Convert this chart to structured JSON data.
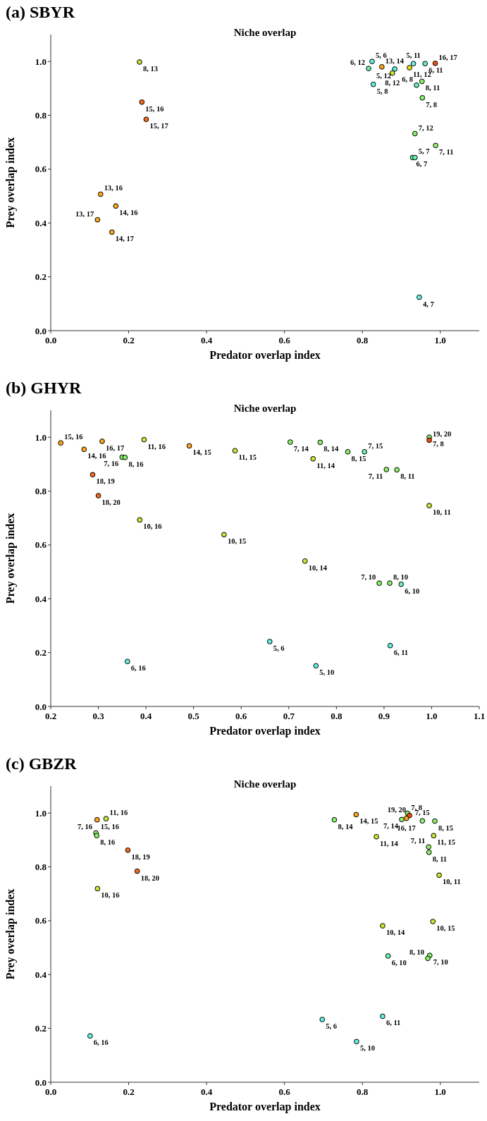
{
  "chart_data": [
    {
      "type": "scatter",
      "title": "(a) SBYR",
      "subtitle": "Niche overlap",
      "xlabel": "Predator overlap index",
      "ylabel": "Prey overlap index",
      "marker": "circle",
      "xlim": [
        0,
        1.1
      ],
      "ylim": [
        0,
        1.1
      ],
      "xticks": [
        {
          "value": 0,
          "label": "0.0"
        },
        {
          "value": 0.2,
          "label": "0.2"
        },
        {
          "value": 0.4,
          "label": "0.4"
        },
        {
          "value": 0.6,
          "label": "0.6"
        },
        {
          "value": 0.8,
          "label": "0.8"
        },
        {
          "value": 1,
          "label": "1.0"
        }
      ],
      "yticks": [
        {
          "value": 0,
          "label": "0.0"
        },
        {
          "value": 0.2,
          "label": "0.2"
        },
        {
          "value": 0.4,
          "label": "0.4"
        },
        {
          "value": 0.6,
          "label": "0.6"
        },
        {
          "value": 0.8,
          "label": "0.8"
        },
        {
          "value": 1,
          "label": "1.0"
        }
      ],
      "x": [
        0.228,
        0.234,
        0.245,
        0.128,
        0.167,
        0.12,
        0.157,
        0.946,
        0.988,
        0.929,
        0.935,
        0.935,
        0.954,
        0.953,
        0.939,
        0.828,
        0.816,
        0.825,
        0.85,
        0.883,
        0.877,
        0.921,
        0.931,
        0.961,
        0.987
      ],
      "values": [
        0.998,
        0.849,
        0.785,
        0.507,
        0.463,
        0.412,
        0.366,
        0.124,
        0.688,
        0.643,
        0.643,
        0.732,
        0.865,
        0.926,
        0.912,
        0.915,
        0.974,
        1.0,
        0.98,
        0.972,
        0.957,
        0.977,
        0.992,
        0.992,
        0.993
      ],
      "colors": [
        "#c0e838",
        "#f26a1b",
        "#f26a1b",
        "#f9a61e",
        "#f9a61e",
        "#f9a61e",
        "#f9a61e",
        "#66eedd",
        "#8cef6c",
        "#6cefb0",
        "#6cefb0",
        "#8cef6c",
        "#8cef6c",
        "#8cef6c",
        "#6cefb0",
        "#66eedd",
        "#6cefb0",
        "#66eedd",
        "#f9a61e",
        "#66eedd",
        "#c0e838",
        "#ecdf1a",
        "#66eedd",
        "#6cefb0",
        "#f04e14"
      ],
      "annotations": [
        {
          "text": "8, 13",
          "x": 0.228,
          "y": 0.998
        },
        {
          "text": "15, 16",
          "x": 0.234,
          "y": 0.849
        },
        {
          "text": "15, 17",
          "x": 0.245,
          "y": 0.785
        },
        {
          "text": "13, 16",
          "x": 0.128,
          "y": 0.507
        },
        {
          "text": "14, 16",
          "x": 0.167,
          "y": 0.463
        },
        {
          "text": "13, 17",
          "x": 0.12,
          "y": 0.412
        },
        {
          "text": "14, 17",
          "x": 0.157,
          "y": 0.366
        },
        {
          "text": "4, 7",
          "x": 0.946,
          "y": 0.124
        },
        {
          "text": "7, 11",
          "x": 0.988,
          "y": 0.688
        },
        {
          "text": "6, 7",
          "x": 0.929,
          "y": 0.643
        },
        {
          "text": "5, 7",
          "x": 0.935,
          "y": 0.643
        },
        {
          "text": "7, 12",
          "x": 0.935,
          "y": 0.732
        },
        {
          "text": "7, 8",
          "x": 0.954,
          "y": 0.865
        },
        {
          "text": "8, 11",
          "x": 0.953,
          "y": 0.926
        },
        {
          "text": "6, 8",
          "x": 0.939,
          "y": 0.912
        },
        {
          "text": "5, 8",
          "x": 0.828,
          "y": 0.915
        },
        {
          "text": "6, 12",
          "x": 0.816,
          "y": 0.974
        },
        {
          "text": "5, 6",
          "x": 0.825,
          "y": 1.0
        },
        {
          "text": "13, 14",
          "x": 0.85,
          "y": 0.98
        },
        {
          "text": "5, 12",
          "x": 0.883,
          "y": 0.972
        },
        {
          "text": "8, 12",
          "x": 0.877,
          "y": 0.957
        },
        {
          "text": "11, 12",
          "x": 0.921,
          "y": 0.977
        },
        {
          "text": "5, 11",
          "x": 0.931,
          "y": 0.992
        },
        {
          "text": "6, 11",
          "x": 0.961,
          "y": 0.992
        },
        {
          "text": "16, 17",
          "x": 0.987,
          "y": 0.993
        }
      ]
    },
    {
      "type": "scatter",
      "title": "(b) GHYR",
      "subtitle": "Niche overlap",
      "xlabel": "Predator overlap index",
      "ylabel": "Prey overlap index",
      "marker": "circle",
      "xlim": [
        0.2,
        1.1
      ],
      "ylim": [
        0,
        1.1
      ],
      "xticks": [
        {
          "value": 0.2,
          "label": "0.2"
        },
        {
          "value": 0.3,
          "label": "0.3"
        },
        {
          "value": 0.4,
          "label": "0.4"
        },
        {
          "value": 0.5,
          "label": "0.5"
        },
        {
          "value": 0.6,
          "label": "0.6"
        },
        {
          "value": 0.7,
          "label": "0.7"
        },
        {
          "value": 0.8,
          "label": "0.8"
        },
        {
          "value": 0.9,
          "label": "0.9"
        },
        {
          "value": 1,
          "label": "1.0"
        },
        {
          "value": 1.1,
          "label": "1.1"
        }
      ],
      "yticks": [
        {
          "value": 0,
          "label": "0.0"
        },
        {
          "value": 0.2,
          "label": "0.2"
        },
        {
          "value": 0.4,
          "label": "0.4"
        },
        {
          "value": 0.6,
          "label": "0.6"
        },
        {
          "value": 0.8,
          "label": "0.8"
        },
        {
          "value": 1,
          "label": "1.0"
        }
      ],
      "x": [
        0.221,
        0.27,
        0.308,
        0.288,
        0.3,
        0.35,
        0.356,
        0.396,
        0.387,
        0.361,
        0.491,
        0.587,
        0.564,
        0.703,
        0.766,
        0.751,
        0.734,
        0.824,
        0.859,
        0.905,
        0.927,
        0.995,
        0.995,
        0.995,
        0.89,
        0.912,
        0.936,
        0.66,
        0.757,
        0.913
      ],
      "values": [
        0.979,
        0.955,
        0.985,
        0.861,
        0.783,
        0.926,
        0.925,
        0.991,
        0.693,
        0.167,
        0.968,
        0.95,
        0.638,
        0.982,
        0.981,
        0.92,
        0.54,
        0.946,
        0.946,
        0.88,
        0.879,
        1.0,
        0.989,
        0.746,
        0.458,
        0.458,
        0.454,
        0.241,
        0.151,
        0.226
      ],
      "colors": [
        "#f9a61e",
        "#f9a61e",
        "#f9a61e",
        "#f26a1b",
        "#f26a1b",
        "#8cef6c",
        "#8cef6c",
        "#c0e838",
        "#c0e838",
        "#66eedd",
        "#f9a61e",
        "#c0e838",
        "#c0e838",
        "#8cef6c",
        "#8cef6c",
        "#c0e838",
        "#c0e838",
        "#8cef6c",
        "#6cefb0",
        "#8cef6c",
        "#8cef6c",
        "#8cef6c",
        "#f04e14",
        "#c0e838",
        "#8cef6c",
        "#8cef6c",
        "#6cefb0",
        "#66eedd",
        "#66eedd",
        "#66eedd"
      ],
      "annotations": [
        {
          "text": "15, 16",
          "x": 0.221,
          "y": 0.979
        },
        {
          "text": "14, 16",
          "x": 0.27,
          "y": 0.955
        },
        {
          "text": "16, 17",
          "x": 0.308,
          "y": 0.985
        },
        {
          "text": "18, 19",
          "x": 0.288,
          "y": 0.861
        },
        {
          "text": "18, 20",
          "x": 0.3,
          "y": 0.783
        },
        {
          "text": "7, 16",
          "x": 0.35,
          "y": 0.926
        },
        {
          "text": "8, 16",
          "x": 0.356,
          "y": 0.925
        },
        {
          "text": "11, 16",
          "x": 0.396,
          "y": 0.991
        },
        {
          "text": "10, 16",
          "x": 0.387,
          "y": 0.693
        },
        {
          "text": "6, 16",
          "x": 0.361,
          "y": 0.167
        },
        {
          "text": "14, 15",
          "x": 0.491,
          "y": 0.968
        },
        {
          "text": "11, 15",
          "x": 0.587,
          "y": 0.95
        },
        {
          "text": "10, 15",
          "x": 0.564,
          "y": 0.638
        },
        {
          "text": "7, 14",
          "x": 0.703,
          "y": 0.982
        },
        {
          "text": "8, 14",
          "x": 0.766,
          "y": 0.981
        },
        {
          "text": "11, 14",
          "x": 0.751,
          "y": 0.92
        },
        {
          "text": "10, 14",
          "x": 0.734,
          "y": 0.54
        },
        {
          "text": "8, 15",
          "x": 0.824,
          "y": 0.946
        },
        {
          "text": "7, 15",
          "x": 0.859,
          "y": 0.946
        },
        {
          "text": "7, 11",
          "x": 0.905,
          "y": 0.88
        },
        {
          "text": "8, 11",
          "x": 0.927,
          "y": 0.879
        },
        {
          "text": "7, 8",
          "x": 0.995,
          "y": 1.0
        },
        {
          "text": "19, 20",
          "x": 0.995,
          "y": 0.989
        },
        {
          "text": "10, 11",
          "x": 0.995,
          "y": 0.746
        },
        {
          "text": "7, 10",
          "x": 0.89,
          "y": 0.458
        },
        {
          "text": "8, 10",
          "x": 0.912,
          "y": 0.458
        },
        {
          "text": "6, 10",
          "x": 0.936,
          "y": 0.454
        },
        {
          "text": "5, 6",
          "x": 0.66,
          "y": 0.241
        },
        {
          "text": "5, 10",
          "x": 0.757,
          "y": 0.151
        },
        {
          "text": "6, 11",
          "x": 0.913,
          "y": 0.226
        }
      ]
    },
    {
      "type": "scatter",
      "title": "(c) GBZR",
      "subtitle": "Niche overlap",
      "xlabel": "Predator overlap index",
      "ylabel": "Prey overlap index",
      "marker": "circle",
      "xlim": [
        0,
        1.1
      ],
      "ylim": [
        0,
        1.1
      ],
      "xticks": [
        {
          "value": 0,
          "label": "0.0"
        },
        {
          "value": 0.2,
          "label": "0.2"
        },
        {
          "value": 0.4,
          "label": "0.4"
        },
        {
          "value": 0.6,
          "label": "0.6"
        },
        {
          "value": 0.8,
          "label": "0.8"
        },
        {
          "value": 1,
          "label": "1.0"
        }
      ],
      "yticks": [
        {
          "value": 0,
          "label": "0.0"
        },
        {
          "value": 0.2,
          "label": "0.2"
        },
        {
          "value": 0.4,
          "label": "0.4"
        },
        {
          "value": 0.6,
          "label": "0.6"
        },
        {
          "value": 0.8,
          "label": "0.8"
        },
        {
          "value": 1,
          "label": "1.0"
        }
      ],
      "x": [
        0.119,
        0.142,
        0.116,
        0.118,
        0.198,
        0.222,
        0.12,
        0.101,
        0.784,
        0.728,
        0.836,
        0.916,
        0.921,
        0.913,
        0.901,
        0.954,
        0.986,
        0.983,
        0.97,
        0.971,
        0.997,
        0.981,
        0.852,
        0.866,
        0.973,
        0.968,
        0.697,
        0.785,
        0.852
      ],
      "values": [
        0.975,
        0.979,
        0.926,
        0.916,
        0.862,
        0.784,
        0.719,
        0.172,
        0.994,
        0.975,
        0.912,
        0.999,
        0.991,
        0.98,
        0.976,
        0.971,
        0.97,
        0.916,
        0.874,
        0.854,
        0.769,
        0.597,
        0.581,
        0.469,
        0.471,
        0.46,
        0.233,
        0.151,
        0.245
      ],
      "colors": [
        "#f9a61e",
        "#c0e838",
        "#8cef6c",
        "#8cef6c",
        "#f26a1b",
        "#f26a1b",
        "#c0e838",
        "#66eedd",
        "#f9a61e",
        "#8cef6c",
        "#c0e838",
        "#8cef6c",
        "#f04e14",
        "#f9a61e",
        "#8cef6c",
        "#8cef6c",
        "#8cef6c",
        "#c0e838",
        "#8cef6c",
        "#8cef6c",
        "#c0e838",
        "#c0e838",
        "#c0e838",
        "#6cefb0",
        "#8cef6c",
        "#8cef6c",
        "#66eedd",
        "#66eedd",
        "#66eedd"
      ],
      "annotations": [
        {
          "text": "15, 16",
          "x": 0.119,
          "y": 0.975
        },
        {
          "text": "11, 16",
          "x": 0.142,
          "y": 0.979
        },
        {
          "text": "7, 16",
          "x": 0.116,
          "y": 0.926
        },
        {
          "text": "8, 16",
          "x": 0.118,
          "y": 0.916
        },
        {
          "text": "18, 19",
          "x": 0.198,
          "y": 0.862
        },
        {
          "text": "18, 20",
          "x": 0.222,
          "y": 0.784
        },
        {
          "text": "10, 16",
          "x": 0.12,
          "y": 0.719
        },
        {
          "text": "6, 16",
          "x": 0.101,
          "y": 0.172
        },
        {
          "text": "14, 15",
          "x": 0.784,
          "y": 0.994
        },
        {
          "text": "8, 14",
          "x": 0.728,
          "y": 0.975
        },
        {
          "text": "11, 14",
          "x": 0.836,
          "y": 0.912
        },
        {
          "text": "7, 8",
          "x": 0.916,
          "y": 0.999
        },
        {
          "text": "19, 20",
          "x": 0.921,
          "y": 0.991
        },
        {
          "text": "16, 17",
          "x": 0.913,
          "y": 0.98
        },
        {
          "text": "7, 14",
          "x": 0.901,
          "y": 0.976
        },
        {
          "text": "7, 15",
          "x": 0.954,
          "y": 0.971
        },
        {
          "text": "8, 15",
          "x": 0.986,
          "y": 0.97
        },
        {
          "text": "11, 15",
          "x": 0.983,
          "y": 0.916
        },
        {
          "text": "7, 11",
          "x": 0.97,
          "y": 0.874
        },
        {
          "text": "8, 11",
          "x": 0.971,
          "y": 0.854
        },
        {
          "text": "10, 11",
          "x": 0.997,
          "y": 0.769
        },
        {
          "text": "10, 15",
          "x": 0.981,
          "y": 0.597
        },
        {
          "text": "10, 14",
          "x": 0.852,
          "y": 0.581
        },
        {
          "text": "6, 10",
          "x": 0.866,
          "y": 0.469
        },
        {
          "text": "7, 10",
          "x": 0.973,
          "y": 0.471
        },
        {
          "text": "8, 10",
          "x": 0.968,
          "y": 0.46
        },
        {
          "text": "5, 6",
          "x": 0.697,
          "y": 0.233
        },
        {
          "text": "5, 10",
          "x": 0.785,
          "y": 0.151
        },
        {
          "text": "6, 11",
          "x": 0.852,
          "y": 0.245
        }
      ]
    }
  ]
}
